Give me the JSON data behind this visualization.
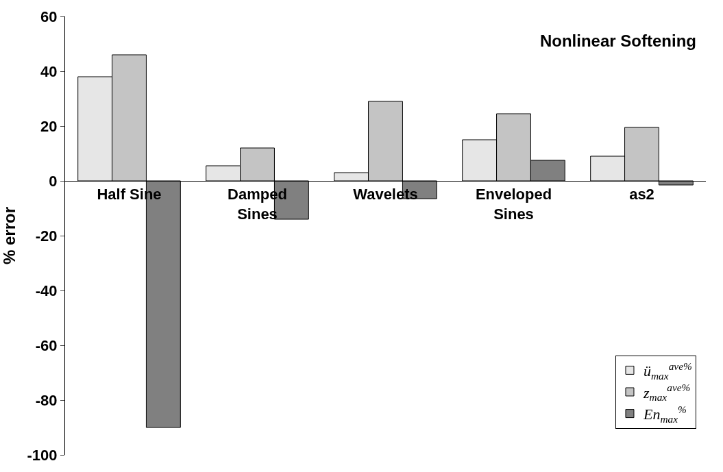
{
  "chart_data": {
    "type": "bar",
    "title": "Nonlinear Softening",
    "ylabel": "% error",
    "categories": [
      "Half Sine",
      "Damped\nSines",
      "Wavelets",
      "Enveloped\nSines",
      "as2"
    ],
    "series": [
      {
        "name": "ü$_{max}$$^{ave%}$",
        "color": "#e6e6e6",
        "values": [
          38,
          5.5,
          3,
          15,
          9
        ]
      },
      {
        "name": "z$_{max}$$^{ave%}$",
        "color": "#c4c4c4",
        "values": [
          46,
          12,
          29,
          24.5,
          19.5
        ]
      },
      {
        "name": "En$_{max}$$^{%}$",
        "color": "#808080",
        "values": [
          -90,
          -14,
          -6.5,
          7.5,
          -1.5
        ]
      }
    ],
    "ylim": [
      -100,
      60
    ],
    "yticks": [
      -100,
      -80,
      -60,
      -40,
      -20,
      0,
      20,
      40,
      60
    ],
    "grid": false,
    "legend": "bottom right"
  }
}
